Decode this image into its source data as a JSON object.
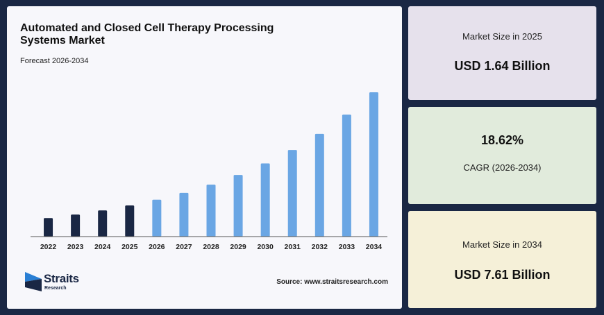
{
  "chart": {
    "title": "Automated and Closed Cell Therapy Processing Systems Market",
    "subtitle": "Forecast 2026-2034",
    "source": "Source: www.straitsresearch.com"
  },
  "logo": {
    "name": "Straits",
    "sub": "Research"
  },
  "cards": {
    "size_2025": {
      "label": "Market Size in 2025",
      "value": "USD 1.64 Billion"
    },
    "cagr": {
      "value": "18.62%",
      "label": "CAGR (2026-2034)"
    },
    "size_2034": {
      "label": "Market Size in 2034",
      "value": "USD 7.61 Billion"
    }
  },
  "colors": {
    "historical": "#1a2744",
    "forecast": "#6aa6e4",
    "background": "#1a2744"
  },
  "chart_data": {
    "type": "bar",
    "title": "Automated and Closed Cell Therapy Processing Systems Market",
    "subtitle": "Forecast 2026-2034",
    "xlabel": "",
    "ylabel": "",
    "categories": [
      "2022",
      "2023",
      "2024",
      "2025",
      "2026",
      "2027",
      "2028",
      "2029",
      "2030",
      "2031",
      "2032",
      "2033",
      "2034"
    ],
    "values": [
      0.98,
      1.16,
      1.38,
      1.64,
      1.95,
      2.31,
      2.74,
      3.25,
      3.86,
      4.57,
      5.42,
      6.43,
      7.61
    ],
    "historical_years": [
      "2022",
      "2023",
      "2024",
      "2025"
    ],
    "forecast_years": [
      "2026",
      "2027",
      "2028",
      "2029",
      "2030",
      "2031",
      "2032",
      "2033",
      "2034"
    ],
    "ylim": [
      0,
      7.61
    ],
    "grid": false,
    "legend": "none"
  }
}
